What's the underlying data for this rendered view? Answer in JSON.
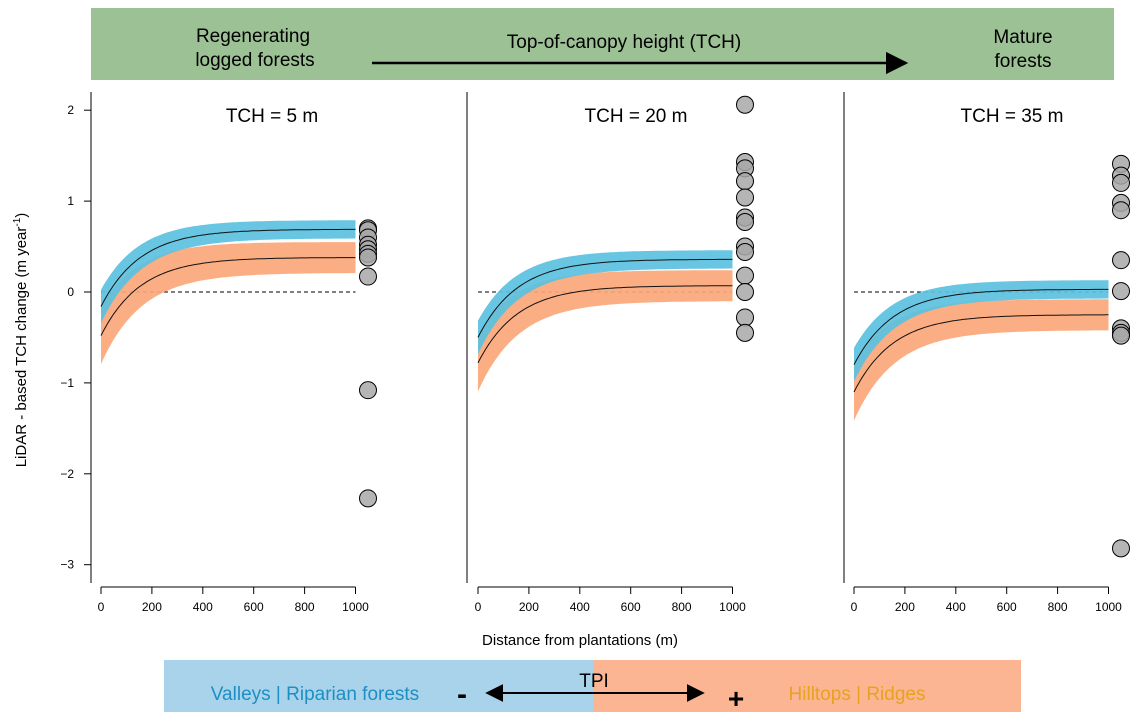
{
  "header_banner": {
    "left_text": [
      "Regenerating",
      "logged forests"
    ],
    "center_text": "Top-of-canopy height (TCH)",
    "right_text": [
      "Mature",
      "forests"
    ],
    "color": "#9cc194"
  },
  "footer_banner": {
    "left_text": "Valleys | Riparian forests",
    "right_text": "Hilltops | Ridges",
    "center_text": "TPI",
    "minus_sign": "-",
    "plus_sign": "+",
    "left_color": "#a9d3ea",
    "right_color": "#fbb593",
    "left_text_color": "#1d8fc4",
    "right_text_color": "#e8a21d"
  },
  "colors": {
    "valley_band": "#5bc1df",
    "ridge_band": "#fba779",
    "point_fill": "#a8a8a8"
  },
  "chart_data": {
    "type": "line",
    "ylabel_main": "LiDAR - based TCH change (m year",
    "ylabel_sup": "-1",
    "ylabel_end": ")",
    "xlabel": "Distance from plantations (m)",
    "xlim": [
      -30,
      1060
    ],
    "ylim": [
      -3.2,
      2.2
    ],
    "x_ticks": [
      0,
      200,
      400,
      600,
      800,
      1000
    ],
    "y_ticks": [
      -3,
      -2,
      -1,
      0,
      1,
      2
    ],
    "reference_line": 0,
    "panels": [
      {
        "title": "TCH = 5 m",
        "series": [
          {
            "y0": -0.16,
            "yinf": 0.69,
            "band_halfwidth": 0.1,
            "color": "#5bc1df"
          },
          {
            "y0": -0.48,
            "yinf": 0.38,
            "band_halfwidth": 0.17,
            "color": "#fba779"
          }
        ],
        "points": [
          0.7,
          0.68,
          0.6,
          0.52,
          0.47,
          0.42,
          0.38,
          0.17,
          -1.08,
          -2.27
        ]
      },
      {
        "title": "TCH = 20 m",
        "series": [
          {
            "y0": -0.5,
            "yinf": 0.36,
            "band_halfwidth": 0.1,
            "color": "#5bc1df"
          },
          {
            "y0": -0.78,
            "yinf": 0.07,
            "band_halfwidth": 0.17,
            "color": "#fba779"
          }
        ],
        "points": [
          2.06,
          1.43,
          1.36,
          1.22,
          1.04,
          0.82,
          0.77,
          0.5,
          0.44,
          0.18,
          0.0,
          -0.28,
          -0.45
        ]
      },
      {
        "title": "TCH = 35 m",
        "series": [
          {
            "y0": -0.8,
            "yinf": 0.03,
            "band_halfwidth": 0.1,
            "color": "#5bc1df"
          },
          {
            "y0": -1.1,
            "yinf": -0.25,
            "band_halfwidth": 0.17,
            "color": "#fba779"
          }
        ],
        "points": [
          1.41,
          1.28,
          1.2,
          0.98,
          0.9,
          0.35,
          0.01,
          -0.4,
          -0.45,
          -0.48,
          -2.82
        ]
      }
    ]
  }
}
